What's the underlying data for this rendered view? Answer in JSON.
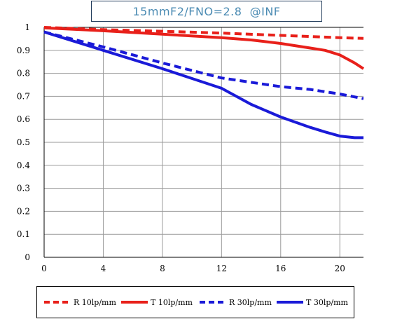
{
  "title": "15mmF2/FNO=2.8  @INF",
  "chart_data": {
    "type": "line",
    "title": "15mmF2/FNO=2.8  @INF",
    "xlabel": "",
    "ylabel": "",
    "xlim": [
      0,
      21.6
    ],
    "ylim": [
      0,
      1
    ],
    "x_ticks": [
      "0",
      "4",
      "8",
      "12",
      "16",
      "20"
    ],
    "y_ticks": [
      "0",
      "0.1",
      "0.2",
      "0.3",
      "0.4",
      "0.5",
      "0.6",
      "0.7",
      "0.8",
      "0.9",
      "1"
    ],
    "grid": true,
    "legend_position": "bottom",
    "series": [
      {
        "name": "R 10lp/mm",
        "color": "#e8201a",
        "dash": true,
        "points": [
          [
            0,
            1.0
          ],
          [
            4,
            0.99
          ],
          [
            8,
            0.983
          ],
          [
            12,
            0.975
          ],
          [
            16,
            0.965
          ],
          [
            18,
            0.96
          ],
          [
            20,
            0.955
          ],
          [
            21.6,
            0.952
          ]
        ]
      },
      {
        "name": "T 10lp/mm",
        "color": "#e8201a",
        "dash": false,
        "points": [
          [
            0,
            0.998
          ],
          [
            4,
            0.985
          ],
          [
            8,
            0.97
          ],
          [
            12,
            0.955
          ],
          [
            14,
            0.945
          ],
          [
            16,
            0.93
          ],
          [
            18,
            0.91
          ],
          [
            19,
            0.9
          ],
          [
            20,
            0.88
          ],
          [
            21,
            0.845
          ],
          [
            21.6,
            0.82
          ]
        ]
      },
      {
        "name": "R 30lp/mm",
        "color": "#1a1ad8",
        "dash": true,
        "points": [
          [
            0,
            0.98
          ],
          [
            4,
            0.915
          ],
          [
            8,
            0.845
          ],
          [
            12,
            0.78
          ],
          [
            16,
            0.742
          ],
          [
            18,
            0.73
          ],
          [
            20,
            0.71
          ],
          [
            21.6,
            0.69
          ]
        ]
      },
      {
        "name": "T 30lp/mm",
        "color": "#1a1ad8",
        "dash": false,
        "points": [
          [
            0,
            0.98
          ],
          [
            4,
            0.9
          ],
          [
            8,
            0.82
          ],
          [
            12,
            0.735
          ],
          [
            14,
            0.665
          ],
          [
            16,
            0.61
          ],
          [
            18,
            0.565
          ],
          [
            19,
            0.545
          ],
          [
            20,
            0.527
          ],
          [
            21,
            0.52
          ],
          [
            21.6,
            0.52
          ]
        ]
      }
    ]
  }
}
